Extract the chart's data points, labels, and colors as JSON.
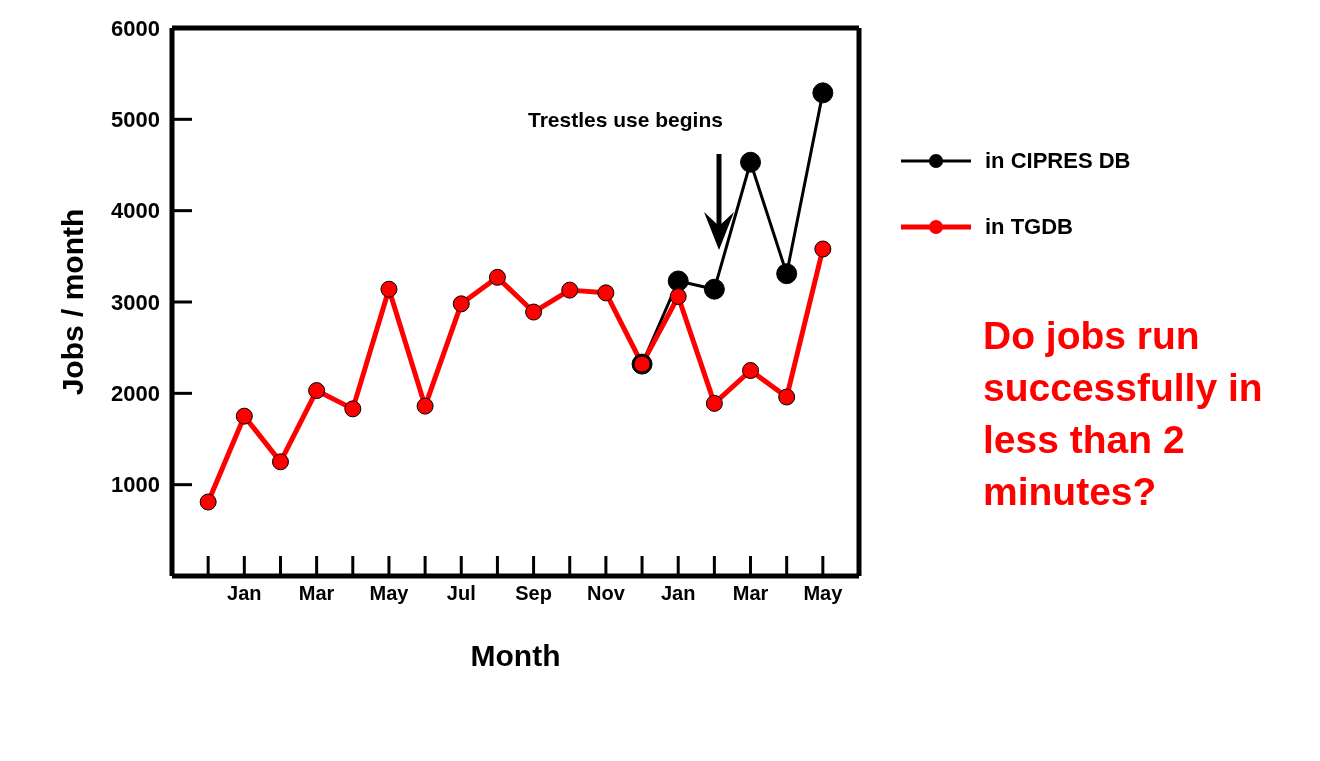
{
  "chart_data": {
    "type": "line",
    "xlabel": "Month",
    "ylabel": "Jobs / month",
    "categories": [
      null,
      "Jan",
      null,
      "Mar",
      null,
      "May",
      null,
      "Jul",
      null,
      "Sep",
      null,
      "Nov",
      null,
      "Jan",
      null,
      "Mar",
      null,
      "May"
    ],
    "series": [
      {
        "name": "in CIPRES DB",
        "color": "#000000",
        "values": [
          null,
          null,
          null,
          null,
          null,
          null,
          null,
          null,
          null,
          null,
          null,
          null,
          2320,
          3230,
          3140,
          4530,
          3310,
          5290
        ]
      },
      {
        "name": "in TGDB",
        "color": "#ff0000",
        "values": [
          810,
          1750,
          1250,
          2030,
          1830,
          3140,
          1860,
          2980,
          3270,
          2890,
          3130,
          3100,
          2320,
          3060,
          1890,
          2250,
          1960,
          3580
        ]
      }
    ],
    "ylim": [
      0,
      6000
    ],
    "yticks": [
      {
        "value": 0,
        "label": null
      },
      1000,
      2000,
      3000,
      4000,
      5000,
      6000
    ],
    "legend": "right",
    "marker": "circle",
    "line_style": "solid",
    "annotations": [
      "Trestles use begins",
      "Do jobs run successfully in less than 2 minutes?"
    ]
  }
}
